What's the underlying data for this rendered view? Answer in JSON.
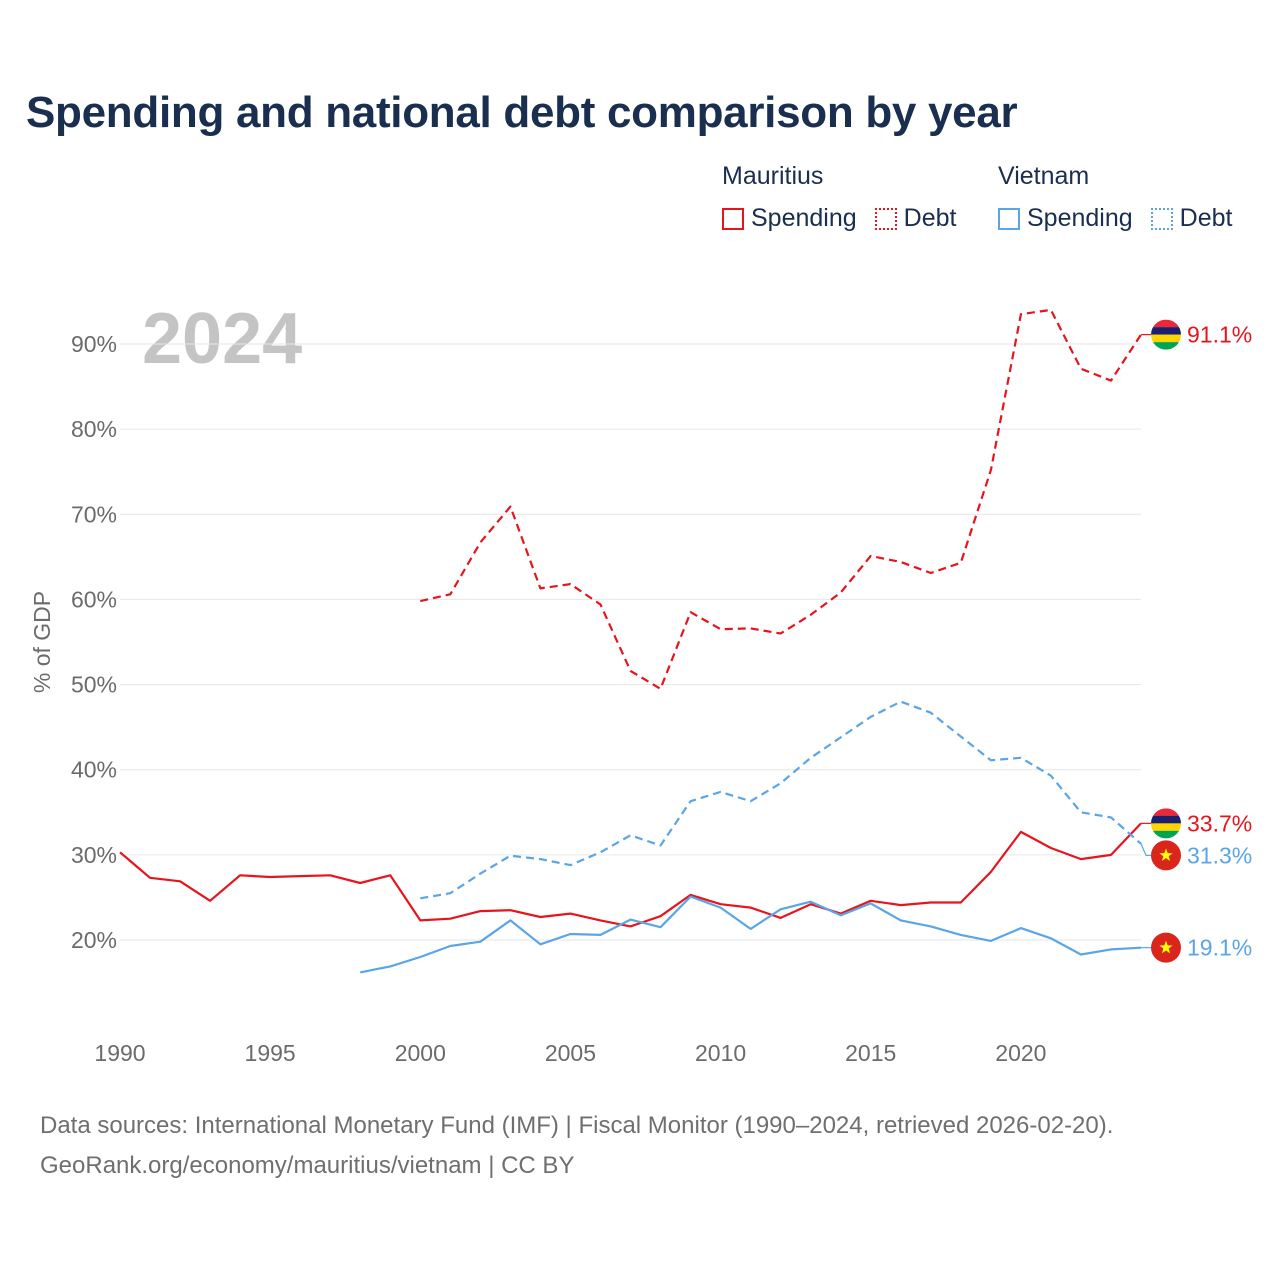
{
  "title": "Spending and national debt comparison by year",
  "legend": {
    "groups": [
      {
        "name": "Mauritius",
        "color": "#e8141c",
        "items": [
          "Spending",
          "Debt"
        ]
      },
      {
        "name": "Vietnam",
        "color": "#5aa5e8",
        "items": [
          "Spending",
          "Debt"
        ]
      }
    ]
  },
  "footer": {
    "sources": "Data sources: International Monetary Fund (IMF) | Fiscal Monitor (1990–2024, retrieved 2026-02-20).",
    "link": "GeoRank.org/economy/mauritius/vietnam | CC BY"
  },
  "chart_data": {
    "type": "line",
    "year_label": "2024",
    "ylabel": "% of GDP",
    "xlim": [
      1990,
      2024
    ],
    "ylim": [
      10,
      95
    ],
    "x_ticks": [
      1990,
      1995,
      2000,
      2005,
      2010,
      2015,
      2020
    ],
    "y_ticks": [
      20,
      30,
      40,
      50,
      60,
      70,
      80,
      90
    ],
    "y_tick_labels": [
      "20%",
      "30%",
      "40%",
      "50%",
      "60%",
      "70%",
      "80%",
      "90%"
    ],
    "series": [
      {
        "name": "Mauritius Spending",
        "country": "Mauritius",
        "color": "#e8141c",
        "dashed": false,
        "start_year": 1990,
        "values": [
          30.3,
          27.3,
          26.9,
          24.6,
          27.6,
          27.4,
          27.5,
          27.6,
          26.7,
          27.6,
          22.3,
          22.5,
          23.4,
          23.5,
          22.7,
          23.1,
          22.3,
          21.6,
          22.8,
          25.3,
          24.2,
          23.8,
          22.6,
          24.2,
          23.1,
          24.6,
          24.1,
          24.4,
          24.4,
          28.0,
          32.7,
          30.8,
          29.5,
          30.0,
          33.7
        ],
        "end_label": "33.7%"
      },
      {
        "name": "Mauritius Debt",
        "country": "Mauritius",
        "color": "#e8141c",
        "dashed": true,
        "start_year": 2000,
        "values": [
          59.8,
          60.6,
          66.7,
          70.9,
          61.3,
          61.8,
          59.4,
          51.6,
          49.5,
          58.5,
          56.5,
          56.6,
          56.0,
          58.2,
          60.8,
          65.1,
          64.4,
          63.1,
          64.3,
          75.2,
          93.5,
          94.0,
          87.1,
          85.7,
          91.1
        ],
        "end_label": "91.1%"
      },
      {
        "name": "Vietnam Spending",
        "country": "Vietnam",
        "color": "#5aa5e8",
        "dashed": false,
        "start_year": 1998,
        "values": [
          16.2,
          16.9,
          18.0,
          19.3,
          19.8,
          22.3,
          19.5,
          20.7,
          20.6,
          22.4,
          21.5,
          25.1,
          23.8,
          21.3,
          23.6,
          24.5,
          22.9,
          24.3,
          22.3,
          21.6,
          20.6,
          19.9,
          21.4,
          20.2,
          18.3,
          18.9,
          19.1
        ],
        "end_label": "19.1%"
      },
      {
        "name": "Vietnam Debt",
        "country": "Vietnam",
        "color": "#5aa5e8",
        "dashed": true,
        "start_year": 2000,
        "values": [
          24.9,
          25.5,
          27.8,
          29.9,
          29.5,
          28.8,
          30.3,
          32.3,
          31.1,
          36.3,
          37.4,
          36.3,
          38.4,
          41.4,
          43.8,
          46.2,
          48.0,
          46.7,
          43.9,
          41.1,
          41.4,
          39.3,
          35.0,
          34.4,
          31.3
        ],
        "end_label": "31.3%"
      }
    ]
  }
}
